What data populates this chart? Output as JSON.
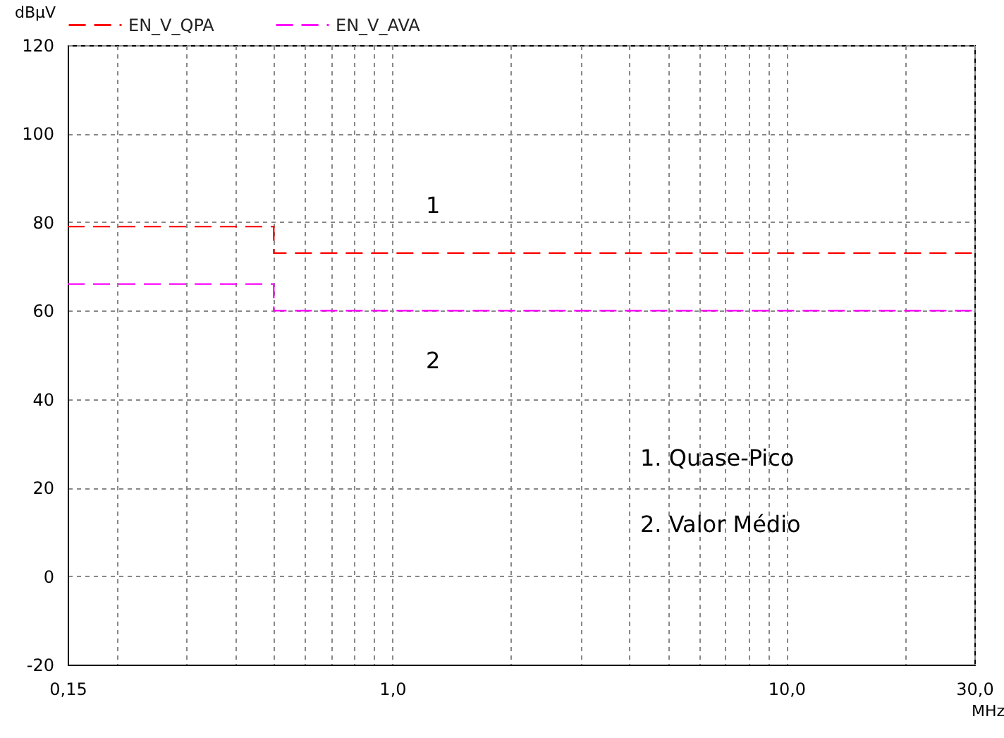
{
  "chart_data": {
    "type": "step",
    "xlabel": "MHz",
    "ylabel": "dBµV",
    "x": [
      0.15,
      0.5,
      30
    ],
    "series": [
      {
        "name": "EN_V_QPA",
        "color": "#ff0000",
        "values": [
          79,
          73,
          73
        ],
        "line_style": "dashed"
      },
      {
        "name": "EN_V_AVA",
        "color": "#ff00ff",
        "values": [
          66,
          60,
          60
        ],
        "line_style": "dashed"
      }
    ],
    "log": "x",
    "xlim": [
      0.15,
      30
    ],
    "xticks": [
      {
        "value": 0.15,
        "label": "0,15"
      },
      {
        "value": 0.2,
        "label": null
      },
      {
        "value": 0.3,
        "label": null
      },
      {
        "value": 0.4,
        "label": null
      },
      {
        "value": 0.5,
        "label": null
      },
      {
        "value": 0.6,
        "label": null
      },
      {
        "value": 0.7,
        "label": null
      },
      {
        "value": 0.8,
        "label": null
      },
      {
        "value": 0.9,
        "label": null
      },
      {
        "value": 1,
        "label": "1,0"
      },
      {
        "value": 2,
        "label": null
      },
      {
        "value": 3,
        "label": null
      },
      {
        "value": 4,
        "label": null
      },
      {
        "value": 5,
        "label": null
      },
      {
        "value": 6,
        "label": null
      },
      {
        "value": 7,
        "label": null
      },
      {
        "value": 8,
        "label": null
      },
      {
        "value": 9,
        "label": null
      },
      {
        "value": 10,
        "label": "10,0"
      },
      {
        "value": 20,
        "label": null
      },
      {
        "value": 30,
        "label": "30,0"
      }
    ],
    "ylim": [
      -20,
      120
    ],
    "yticks": [
      -20,
      0,
      20,
      40,
      60,
      80,
      100,
      120
    ],
    "grid": true,
    "legend": "top",
    "annotations": [
      "1",
      "2",
      "1. Quase-Pico",
      "2. Valor Médio"
    ]
  }
}
